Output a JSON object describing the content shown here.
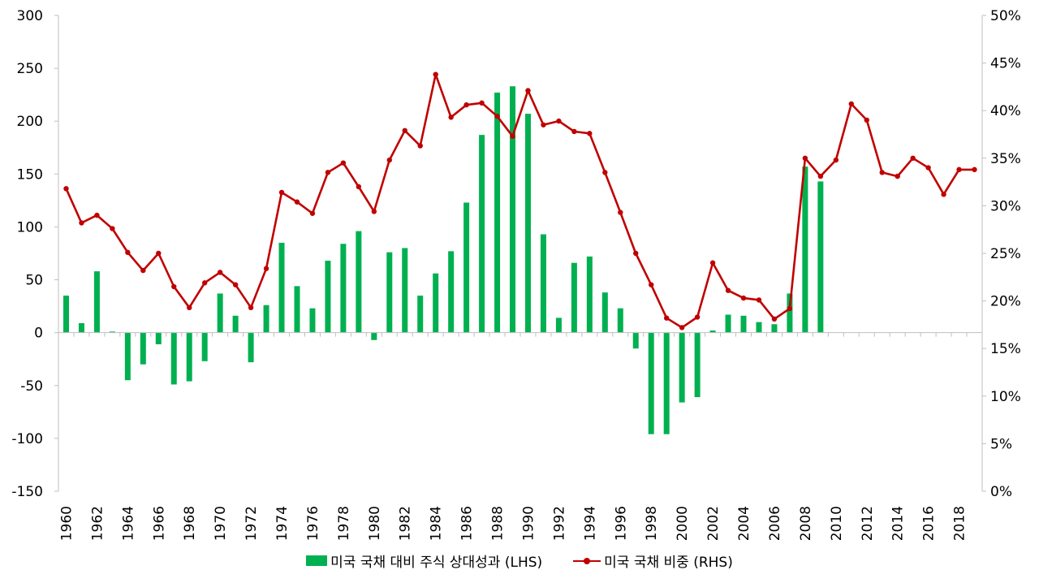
{
  "colors": {
    "bar": "#00b050",
    "line": "#c00000",
    "axis": "#bfbfbf"
  },
  "chart_data": {
    "type": "bar+line",
    "title": "",
    "categories": [
      1960,
      1961,
      1962,
      1963,
      1964,
      1965,
      1966,
      1967,
      1968,
      1969,
      1970,
      1971,
      1972,
      1973,
      1974,
      1975,
      1976,
      1977,
      1978,
      1979,
      1980,
      1981,
      1982,
      1983,
      1984,
      1985,
      1986,
      1987,
      1988,
      1989,
      1990,
      1991,
      1992,
      1993,
      1994,
      1995,
      1996,
      1997,
      1998,
      1999,
      2000,
      2001,
      2002,
      2003,
      2004,
      2005,
      2006,
      2007,
      2008,
      2009,
      2010,
      2011,
      2012,
      2013,
      2014,
      2015,
      2016,
      2017,
      2018,
      2019
    ],
    "x_tick_labels": [
      "1960",
      "1962",
      "1964",
      "1966",
      "1968",
      "1970",
      "1972",
      "1974",
      "1976",
      "1978",
      "1980",
      "1982",
      "1984",
      "1986",
      "1988",
      "1990",
      "1992",
      "1994",
      "1996",
      "1998",
      "2000",
      "2002",
      "2004",
      "2006",
      "2008",
      "2010",
      "2012",
      "2014",
      "2016",
      "2018"
    ],
    "y_left": {
      "label": "",
      "min": -150,
      "max": 300,
      "ticks": [
        "300",
        "250",
        "200",
        "150",
        "100",
        "50",
        "0",
        "-50",
        "-100",
        "-150"
      ]
    },
    "y_right": {
      "label": "",
      "min": 0,
      "max": 50,
      "ticks": [
        "50%",
        "45%",
        "40%",
        "35%",
        "30%",
        "25%",
        "20%",
        "15%",
        "10%",
        "5%",
        "0%"
      ]
    },
    "series": [
      {
        "name": "미국 국채 대비 주식 상대성과 (LHS)",
        "type": "bar",
        "axis": "left",
        "values": [
          35,
          9,
          58,
          1,
          -45,
          -30,
          -11,
          -49,
          -46,
          -27,
          37,
          16,
          -28,
          26,
          85,
          44,
          23,
          68,
          84,
          96,
          -7,
          76,
          80,
          35,
          56,
          77,
          123,
          187,
          227,
          233,
          207,
          93,
          14,
          66,
          72,
          38,
          23,
          -15,
          -96,
          -96,
          -66,
          -61,
          2,
          17,
          16,
          10,
          8,
          37,
          157,
          143,
          null,
          null,
          null,
          null,
          null,
          null,
          null,
          null,
          null,
          null
        ]
      },
      {
        "name": "미국 국채 비중 (RHS)",
        "type": "line",
        "axis": "right",
        "values": [
          31.8,
          28.2,
          29.0,
          27.6,
          25.1,
          23.2,
          25.0,
          21.5,
          19.3,
          21.9,
          23.0,
          21.7,
          19.3,
          23.4,
          31.4,
          30.4,
          29.2,
          33.5,
          34.5,
          32.0,
          29.4,
          34.8,
          37.9,
          36.3,
          43.8,
          39.3,
          40.6,
          40.8,
          39.4,
          37.3,
          42.1,
          38.5,
          38.9,
          37.8,
          37.6,
          33.5,
          29.3,
          25.0,
          21.7,
          18.2,
          17.2,
          18.3,
          24.0,
          21.1,
          20.3,
          20.1,
          18.1,
          19.2,
          35.0,
          33.1,
          34.8,
          40.7,
          39.0,
          33.5,
          33.1,
          35.0,
          34.0,
          31.2,
          33.8,
          33.8
        ]
      }
    ],
    "legend_position": "bottom-center",
    "grid": false
  },
  "legend": {
    "bar_label": "미국 국채 대비 주식 상대성과 (LHS)",
    "line_label": "미국 국채 비중 (RHS)"
  }
}
